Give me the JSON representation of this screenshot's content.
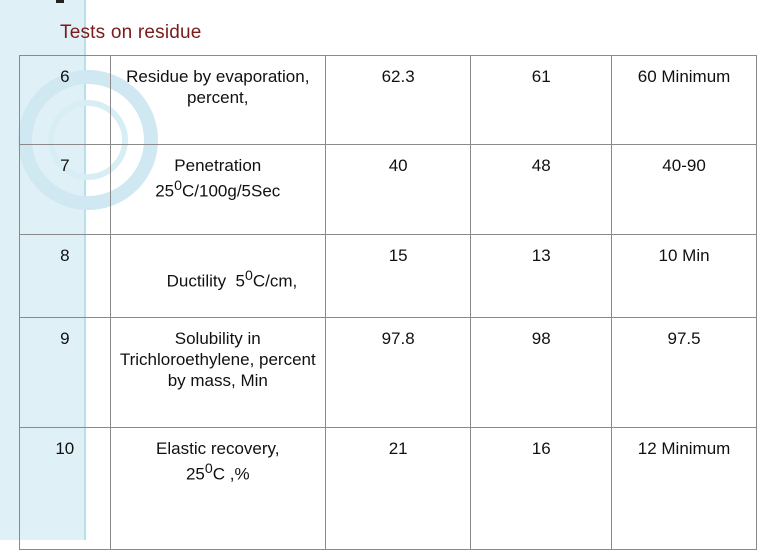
{
  "title": "Tests on residue",
  "rows": [
    {
      "no": "6",
      "test": "Residue by evaporation, percent,",
      "v1": "62.3",
      "v2": "61",
      "spec": "60 Minimum"
    },
    {
      "no": "7",
      "test_line1": "Penetration",
      "test_line2_pre": "25",
      "test_line2_sup": "0",
      "test_line2_post": "C/100g/5Sec",
      "v1": "40",
      "v2": "48",
      "spec": "40-90"
    },
    {
      "no": "8",
      "test_pre": "Ductility  5",
      "test_sup": "0",
      "test_post": "C/cm,",
      "v1": "15",
      "v2": "13",
      "spec": "10 Min"
    },
    {
      "no": "9",
      "test": "Solubility in Trichloroethylene, percent by mass, Min",
      "v1": "97.8",
      "v2": "98",
      "spec": "97.5"
    },
    {
      "no": "10",
      "test_line1": "Elastic recovery,",
      "test_line2_pre": "25",
      "test_line2_sup": "0",
      "test_line2_post": "C ,%",
      "v1": "21",
      "v2": "16",
      "spec": "12 Minimum"
    }
  ]
}
